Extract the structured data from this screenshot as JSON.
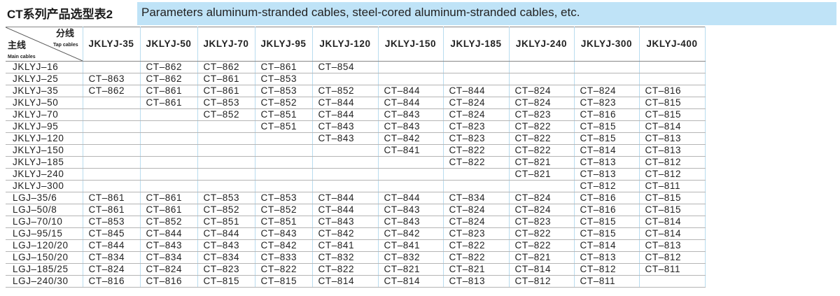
{
  "header": {
    "title": "CT系列产品选型表2",
    "subtitle": "Parameters aluminum-stranded cables, steel-cored aluminum-stranded cables, etc."
  },
  "table": {
    "corner": {
      "tap": "分线",
      "tap_en": "Tap cables",
      "main": "主线",
      "main_en": "Main cables"
    },
    "columns": [
      "JKLYJ-35",
      "JKLYJ-50",
      "JKLYJ-70",
      "JKLYJ-95",
      "JKLYJ-120",
      "JKLYJ-150",
      "JKLYJ-185",
      "JKLYJ-240",
      "JKLYJ-300",
      "JKLYJ-400"
    ],
    "rows": [
      {
        "label": "JKLYJ–16",
        "cells": [
          null,
          "CT–862",
          "CT–862",
          "CT–861",
          "CT–854",
          null,
          null,
          null,
          null,
          null
        ]
      },
      {
        "label": "JKLYJ–25",
        "cells": [
          "CT–863",
          "CT–862",
          "CT–861",
          "CT–853",
          null,
          null,
          null,
          null,
          null,
          null
        ]
      },
      {
        "label": "JKLYJ–35",
        "cells": [
          "CT–862",
          "CT–861",
          "CT–861",
          "CT–853",
          "CT–852",
          "CT–844",
          "CT–844",
          "CT–824",
          "CT–824",
          "CT–816"
        ]
      },
      {
        "label": "JKLYJ–50",
        "cells": [
          null,
          "CT–861",
          "CT–853",
          "CT–852",
          "CT–844",
          "CT–844",
          "CT–824",
          "CT–824",
          "CT–823",
          "CT–815"
        ]
      },
      {
        "label": "JKLYJ–70",
        "cells": [
          null,
          null,
          "CT–852",
          "CT–851",
          "CT–844",
          "CT–843",
          "CT–824",
          "CT–823",
          "CT–816",
          "CT–815"
        ]
      },
      {
        "label": "JKLYJ–95",
        "cells": [
          null,
          null,
          null,
          "CT–851",
          "CT–843",
          "CT–843",
          "CT–823",
          "CT–822",
          "CT–815",
          "CT–814"
        ]
      },
      {
        "label": "JKLYJ–120",
        "cells": [
          null,
          null,
          null,
          null,
          "CT–843",
          "CT–842",
          "CT–823",
          "CT–822",
          "CT–815",
          "CT–813"
        ]
      },
      {
        "label": "JKLYJ–150",
        "cells": [
          null,
          null,
          null,
          null,
          null,
          "CT–841",
          "CT–822",
          "CT–822",
          "CT–814",
          "CT–813"
        ]
      },
      {
        "label": "JKLYJ–185",
        "cells": [
          null,
          null,
          null,
          null,
          null,
          null,
          "CT–822",
          "CT–821",
          "CT–813",
          "CT–812"
        ]
      },
      {
        "label": "JKLYJ–240",
        "cells": [
          null,
          null,
          null,
          null,
          null,
          null,
          null,
          "CT–821",
          "CT–813",
          "CT–812"
        ]
      },
      {
        "label": "JKLYJ–300",
        "cells": [
          null,
          null,
          null,
          null,
          null,
          null,
          null,
          null,
          "CT–812",
          "CT–811"
        ]
      },
      {
        "label": "LGJ–35/6",
        "cells": [
          "CT–861",
          "CT–861",
          "CT–853",
          "CT–853",
          "CT–844",
          "CT–844",
          "CT–834",
          "CT–824",
          "CT–816",
          "CT–815"
        ]
      },
      {
        "label": "LGJ–50/8",
        "cells": [
          "CT–861",
          "CT–861",
          "CT–852",
          "CT–852",
          "CT–844",
          "CT–843",
          "CT–824",
          "CT–824",
          "CT–816",
          "CT–815"
        ]
      },
      {
        "label": "LGJ–70/10",
        "cells": [
          "CT–853",
          "CT–852",
          "CT–851",
          "CT–851",
          "CT–843",
          "CT–843",
          "CT–824",
          "CT–823",
          "CT–815",
          "CT–814"
        ]
      },
      {
        "label": "LGJ–95/15",
        "cells": [
          "CT–845",
          "CT–844",
          "CT–844",
          "CT–843",
          "CT–842",
          "CT–842",
          "CT–823",
          "CT–822",
          "CT–815",
          "CT–814"
        ]
      },
      {
        "label": "LGJ–120/20",
        "cells": [
          "CT–844",
          "CT–843",
          "CT–843",
          "CT–842",
          "CT–841",
          "CT–841",
          "CT–822",
          "CT–822",
          "CT–814",
          "CT–813"
        ]
      },
      {
        "label": "LGJ–150/20",
        "cells": [
          "CT–834",
          "CT–834",
          "CT–834",
          "CT–833",
          "CT–832",
          "CT–832",
          "CT–822",
          "CT–821",
          "CT–813",
          "CT–812"
        ]
      },
      {
        "label": "LGJ–185/25",
        "cells": [
          "CT–824",
          "CT–824",
          "CT–823",
          "CT–822",
          "CT–822",
          "CT–821",
          "CT–821",
          "CT–814",
          "CT–812",
          "CT–811"
        ]
      },
      {
        "label": "LGJ–240/30",
        "cells": [
          "CT–816",
          "CT–816",
          "CT–815",
          "CT–815",
          "CT–814",
          "CT–814",
          "CT–813",
          "CT–812",
          "CT–811",
          null
        ]
      }
    ]
  }
}
